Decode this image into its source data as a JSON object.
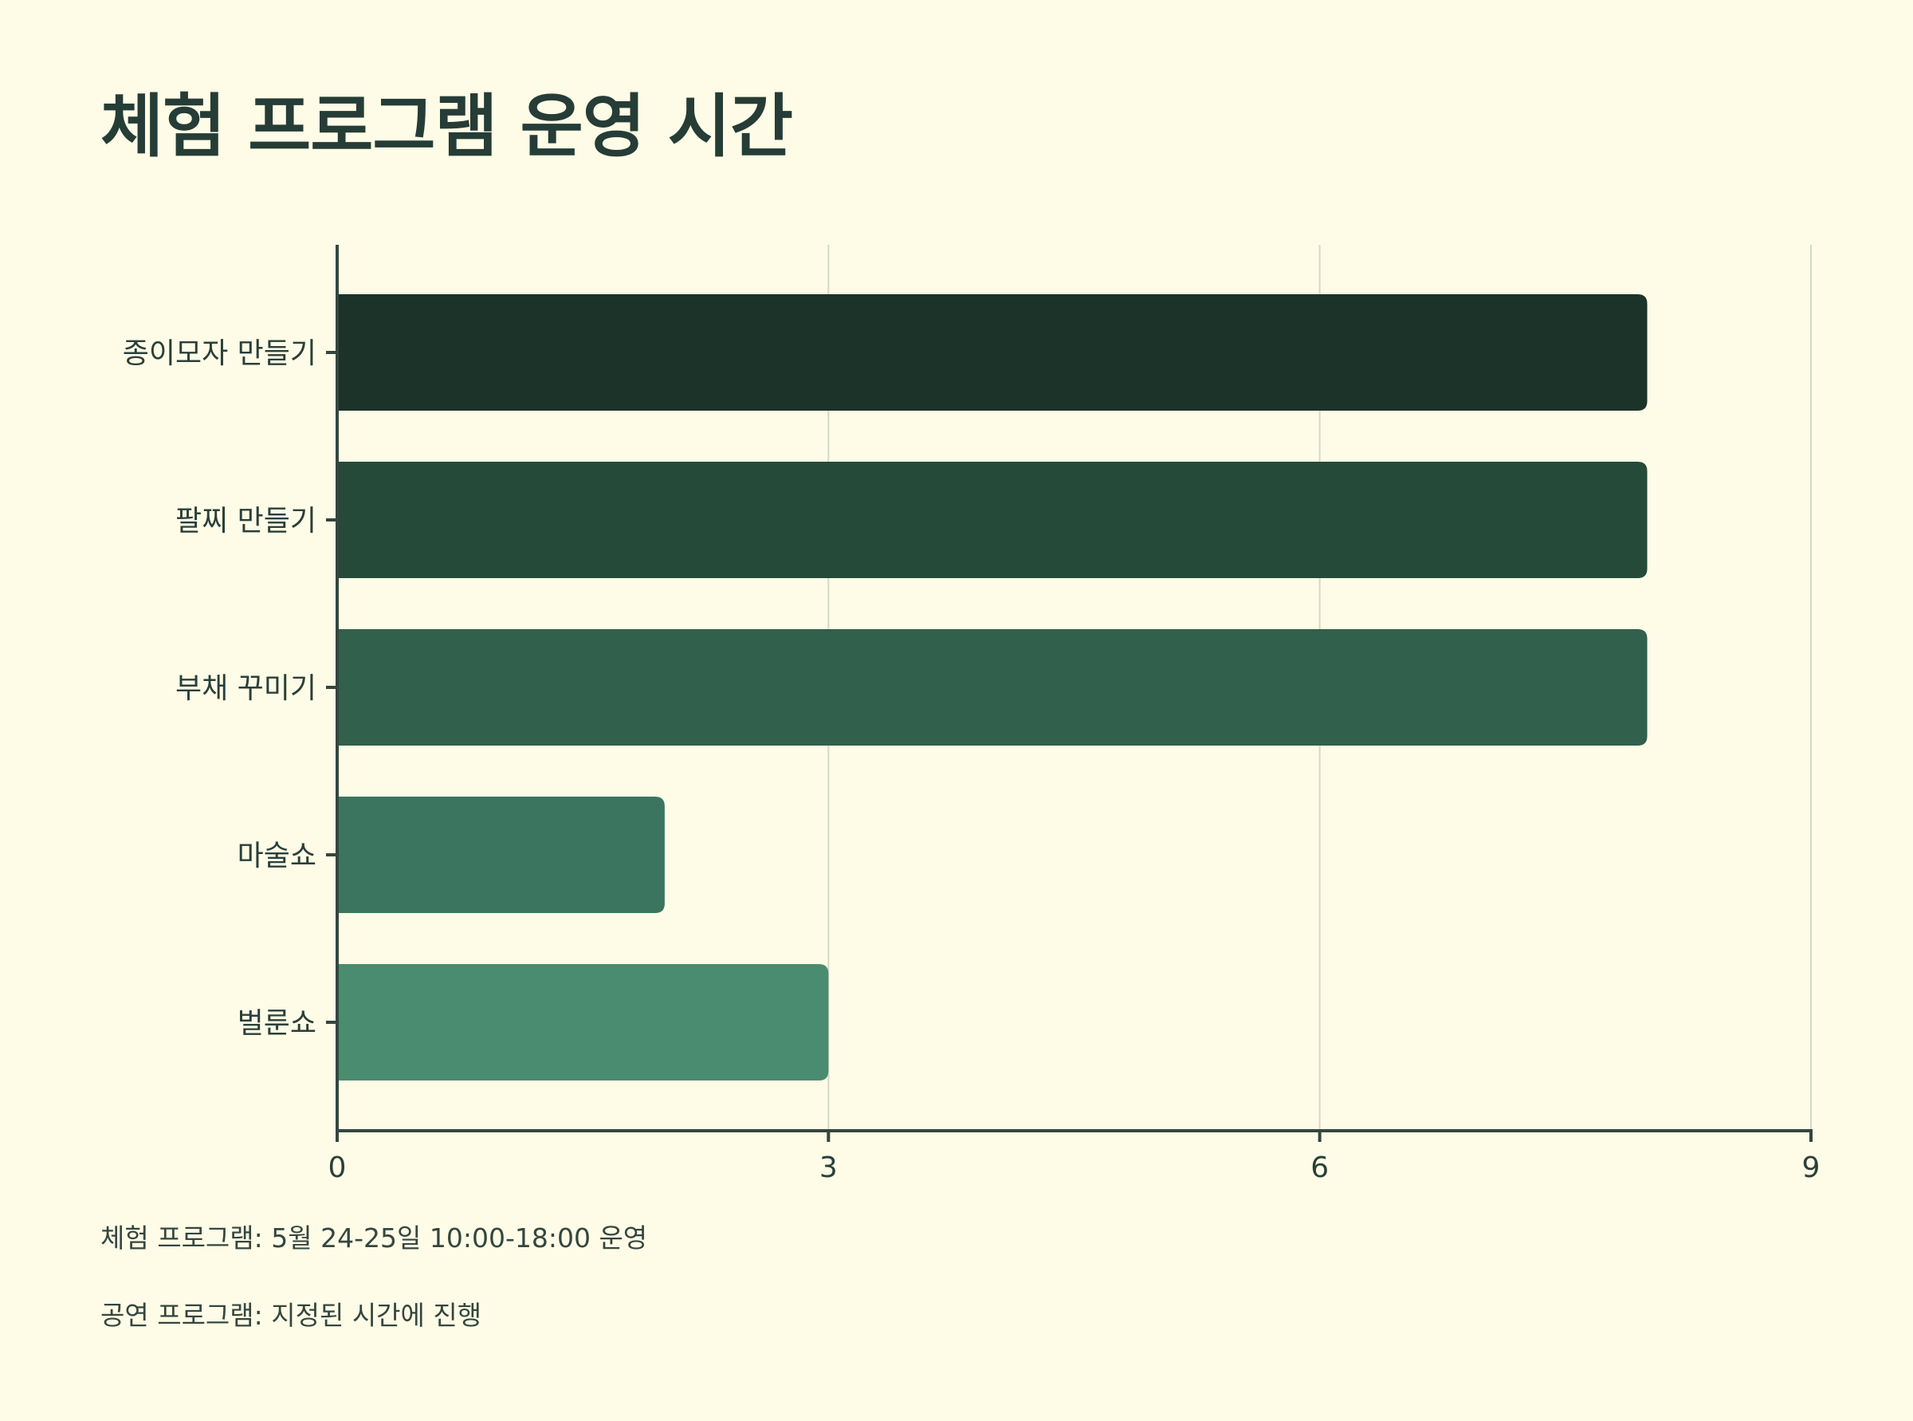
{
  "chart_data": {
    "type": "bar",
    "orientation": "horizontal",
    "title": "체험 프로그램 운영 시간",
    "categories": [
      "종이모자 만들기",
      "팔찌 만들기",
      "부채 꾸미기",
      "마술쇼",
      "벌룬쇼"
    ],
    "values": [
      8,
      8,
      8,
      2,
      3
    ],
    "xlabel": "",
    "ylabel": "",
    "xlim": [
      0,
      9
    ],
    "x_ticks": [
      "0",
      "3",
      "6",
      "9"
    ],
    "grid": "vertical",
    "legend": "none",
    "bar_colors": [
      "#1b3329",
      "#254a3a",
      "#31604c",
      "#3b7560",
      "#4a8c6f"
    ]
  },
  "notes": [
    "체험 프로그램: 5월 24-25일 10:00-18:00 운영",
    "공연 프로그램: 지정된 시간에 진행"
  ],
  "colors": {
    "background": "#fefce6",
    "axis": "#34463f",
    "grid": "#d6d8c7",
    "text": "#2a3f3a"
  }
}
